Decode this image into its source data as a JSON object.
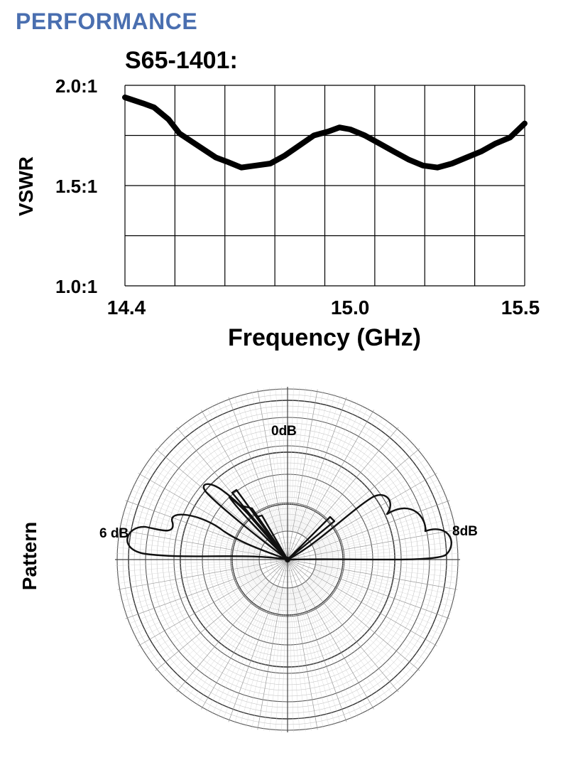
{
  "header": {
    "section_title": "PERFORMANCE",
    "accent_color": "#4a6fb0"
  },
  "chart_data": [
    {
      "type": "line",
      "title": "S65-1401:",
      "xlabel": "Frequency (GHz)",
      "ylabel": "VSWR",
      "xlim": [
        14.4,
        15.5
      ],
      "ylim": [
        1.0,
        2.0
      ],
      "x_ticks": [
        {
          "value": 14.4,
          "label": "14.4"
        },
        {
          "value": 15.0,
          "label": "15.0"
        },
        {
          "value": 15.5,
          "label": "15.5"
        }
      ],
      "y_ticks": [
        {
          "value": 1.0,
          "label": "1.0:1"
        },
        {
          "value": 1.5,
          "label": "1.5:1"
        },
        {
          "value": 2.0,
          "label": "2.0:1"
        }
      ],
      "grid": true,
      "series": [
        {
          "x": [
            14.4,
            14.45,
            14.48,
            14.52,
            14.55,
            14.6,
            14.65,
            14.68,
            14.72,
            14.76,
            14.8,
            14.84,
            14.88,
            14.92,
            14.96,
            14.99,
            15.02,
            15.06,
            15.1,
            15.14,
            15.18,
            15.22,
            15.26,
            15.3,
            15.34,
            15.38,
            15.42,
            15.46,
            15.5
          ],
          "y": [
            1.94,
            1.91,
            1.89,
            1.83,
            1.76,
            1.7,
            1.64,
            1.62,
            1.59,
            1.6,
            1.61,
            1.65,
            1.7,
            1.75,
            1.77,
            1.79,
            1.78,
            1.75,
            1.71,
            1.67,
            1.63,
            1.6,
            1.59,
            1.61,
            1.64,
            1.67,
            1.71,
            1.74,
            1.81
          ]
        }
      ]
    },
    {
      "type": "polar",
      "title": "Pattern",
      "annotations": [
        "0dB",
        "6 dB",
        "8dB"
      ],
      "grid": true
    }
  ]
}
